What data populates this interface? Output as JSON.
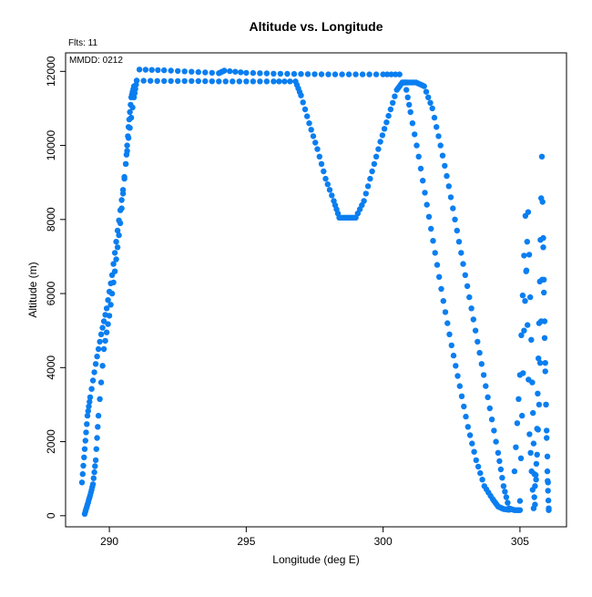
{
  "chart_data": {
    "type": "scatter",
    "title": "Altitude vs. Longitude",
    "xlabel": "Longitude (deg E)",
    "ylabel": "Altitude (m)",
    "annotations": {
      "flights": "Flts: 11",
      "date": "MMDD: 0212"
    },
    "xlim": [
      288.4,
      306.7
    ],
    "ylim": [
      -300,
      12500
    ],
    "xticks": [
      290,
      295,
      300,
      305
    ],
    "yticks": [
      0,
      2000,
      4000,
      6000,
      8000,
      10000,
      12000
    ],
    "colors": {
      "points": "#0a7ef0",
      "axes": "#000000"
    },
    "grid": false,
    "series": [
      {
        "x": [
          289.1,
          289.2,
          289.3,
          289.4,
          289.5,
          289.6,
          289.8,
          290.0,
          290.2,
          290.4,
          290.6,
          290.7,
          290.8,
          290.9
        ],
        "y": [
          50,
          300,
          550,
          850,
          1500,
          2700,
          4500,
          5400,
          6600,
          7900,
          9500,
          10500,
          11300,
          11600
        ]
      },
      {
        "x": [
          289.0,
          289.1,
          289.2,
          289.3,
          289.5,
          289.7,
          289.9,
          290.1,
          290.3,
          290.5,
          290.7,
          290.9,
          291.0
        ],
        "y": [
          900,
          1800,
          2700,
          3200,
          4100,
          4900,
          5600,
          6500,
          7700,
          8800,
          10200,
          11300,
          11750
        ]
      },
      {
        "x": [
          291.1,
          292.0,
          293.0,
          294.0,
          294.2,
          295.0,
          296.0,
          297.0,
          298.0,
          299.0,
          300.0,
          300.6
        ],
        "y": [
          12050,
          12030,
          11990,
          11950,
          12020,
          11960,
          11940,
          11930,
          11920,
          11920,
          11920,
          11920
        ]
      },
      {
        "x": [
          291.0,
          292.0,
          293.0,
          294.0,
          295.0,
          296.0,
          296.8,
          297.0,
          297.3,
          297.6,
          297.9,
          298.2,
          298.4,
          298.7,
          299.0,
          299.3,
          299.6,
          299.9,
          300.2,
          300.5,
          300.7,
          300.9,
          301.2,
          301.5,
          301.8,
          302.1,
          302.4,
          302.7,
          303.0,
          303.3,
          303.6,
          303.9,
          304.2,
          304.4,
          304.6,
          304.8,
          305.0
        ],
        "y": [
          11750,
          11740,
          11740,
          11730,
          11730,
          11730,
          11730,
          11350,
          10600,
          9900,
          9100,
          8500,
          8050,
          8050,
          8050,
          8500,
          9300,
          10100,
          10800,
          11500,
          11700,
          11700,
          11700,
          11600,
          11000,
          10000,
          8900,
          7700,
          6500,
          5300,
          4100,
          2900,
          1700,
          800,
          200,
          150,
          150
        ]
      },
      {
        "x": [
          300.8,
          301.0,
          301.3,
          301.6,
          301.9,
          302.2,
          302.5,
          302.8,
          303.1,
          303.4,
          303.7,
          304.0,
          304.2,
          304.4,
          304.6
        ],
        "y": [
          11700,
          10900,
          9700,
          8400,
          7100,
          5800,
          4600,
          3500,
          2400,
          1500,
          800,
          450,
          250,
          180,
          160
        ]
      },
      {
        "x": [
          304.8,
          305.0,
          305.2,
          305.35,
          305.5,
          305.6,
          305.7,
          305.8,
          305.9,
          306.0,
          306.05
        ],
        "y": [
          1200,
          3800,
          8100,
          2200,
          200,
          1400,
          5200,
          9700,
          4800,
          1200,
          150
        ]
      },
      {
        "x": [
          305.0,
          305.15,
          305.3,
          305.45,
          305.55,
          305.7,
          305.85,
          305.95,
          306.05
        ],
        "y": [
          400,
          5000,
          8200,
          3600,
          300,
          3000,
          7500,
          3000,
          200
        ]
      }
    ]
  }
}
